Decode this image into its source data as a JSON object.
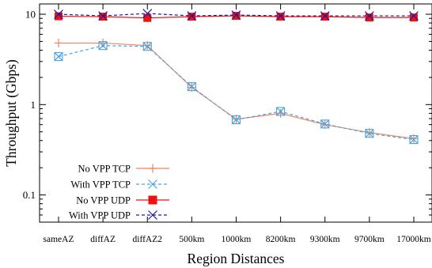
{
  "chart_data": {
    "type": "line",
    "title": "",
    "xlabel": "Region Distances",
    "ylabel": "Throughput (Gbps)",
    "yscale": "log",
    "ylim": [
      0.05,
      13
    ],
    "categories": [
      "sameAZ",
      "diffAZ",
      "diffAZ2",
      "500km",
      "1000km",
      "8200km",
      "9300km",
      "9700km",
      "17000km"
    ],
    "yticks": [
      {
        "value": 0.1,
        "label": "0.1"
      },
      {
        "value": 1,
        "label": "1"
      },
      {
        "value": 10,
        "label": "10"
      }
    ],
    "grid": false,
    "legend_position": "bottom-left",
    "series": [
      {
        "name": "No VPP TCP",
        "color": "#f4845f",
        "dash": "solid",
        "marker": "plus",
        "values": [
          4.8,
          4.8,
          4.5,
          1.55,
          0.69,
          0.8,
          0.6,
          0.49,
          0.42
        ]
      },
      {
        "name": "With VPP TCP",
        "color": "#4aa3df",
        "dash": "dashed",
        "marker": "x",
        "values": [
          3.4,
          4.5,
          4.4,
          1.58,
          0.68,
          0.84,
          0.61,
          0.48,
          0.41
        ]
      },
      {
        "name": "No VPP UDP",
        "color": "#ee1111",
        "dash": "solid",
        "marker": "square",
        "values": [
          9.5,
          9.4,
          9.1,
          9.4,
          9.6,
          9.4,
          9.4,
          9.2,
          9.2
        ]
      },
      {
        "name": "With VPP UDP",
        "color": "#1a1aa8",
        "dash": "dashed",
        "marker": "x",
        "values": [
          10.0,
          9.6,
          10.2,
          9.6,
          9.8,
          9.6,
          9.6,
          9.6,
          9.6
        ]
      }
    ]
  }
}
